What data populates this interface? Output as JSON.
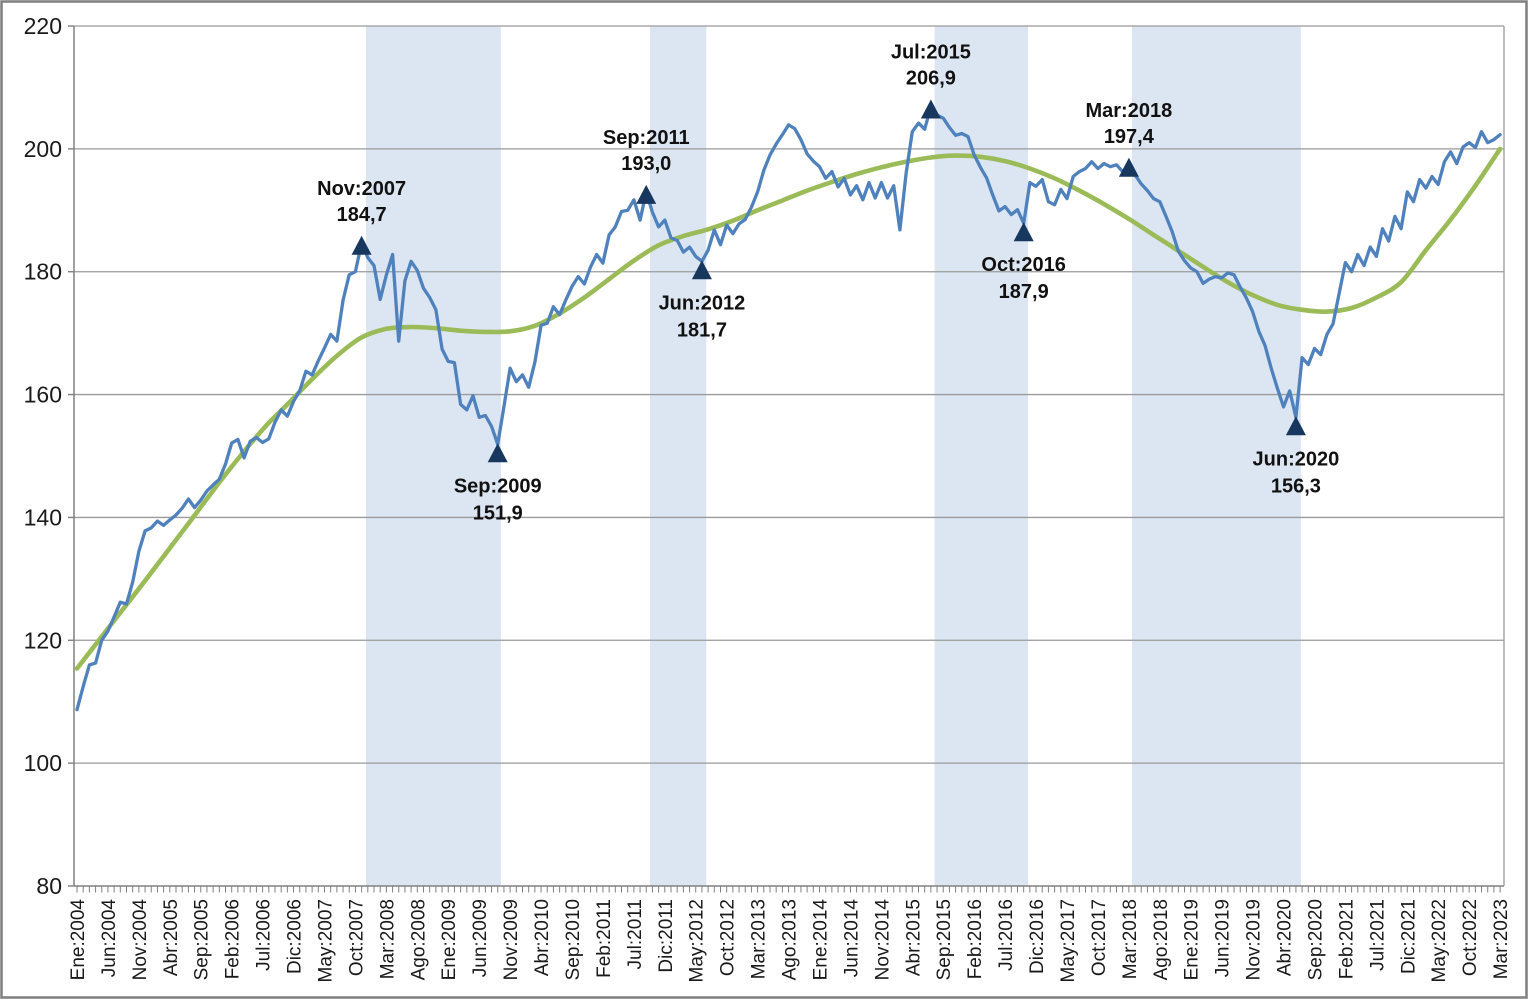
{
  "chart_data": {
    "type": "line",
    "title": "",
    "x_axis": {
      "tick_step_months": 5,
      "tick_labels": [
        "Ene:2004",
        "Jun:2004",
        "Nov:2004",
        "Abr:2005",
        "Sep:2005",
        "Feb:2006",
        "Jul:2006",
        "Dic:2006",
        "May:2007",
        "Oct:2007",
        "Mar:2008",
        "Ago:2008",
        "Ene:2009",
        "Jun:2009",
        "Nov:2009",
        "Abr:2010",
        "Sep:2010",
        "Feb:2011",
        "Jul:2011",
        "Dic:2011",
        "May:2012",
        "Oct:2012",
        "Mar:2013",
        "Ago:2013",
        "Ene:2014",
        "Jun:2014",
        "Nov:2014",
        "Abr:2015",
        "Sep:2015",
        "Feb:2016",
        "Jul:2016",
        "Dic:2016",
        "May:2017",
        "Oct:2017",
        "Mar:2018",
        "Ago:2018",
        "Ene:2019",
        "Jun:2019",
        "Nov:2019",
        "Abr:2020",
        "Sep:2020",
        "Feb:2021",
        "Jul:2021",
        "Dic:2021",
        "May:2022",
        "Oct:2022",
        "Mar:2023"
      ]
    },
    "y_axis": {
      "min": 80,
      "max": 220,
      "step": 20,
      "tick_labels": [
        "220",
        "200",
        "180",
        "160",
        "140",
        "120",
        "100",
        "80"
      ]
    },
    "series": [
      {
        "name": "monthly-series",
        "color": "#4F81BD",
        "start": "Ene:2004",
        "frequency": "monthly",
        "values": [
          108.7,
          112.5,
          116.0,
          116.3,
          120.0,
          121.5,
          123.8,
          126.2,
          125.9,
          129.5,
          134.5,
          137.8,
          138.3,
          139.4,
          138.7,
          139.6,
          140.4,
          141.5,
          143.0,
          141.6,
          142.8,
          144.3,
          145.3,
          146.2,
          148.7,
          152.1,
          152.7,
          149.7,
          152.4,
          153.0,
          152.2,
          152.8,
          155.5,
          157.5,
          156.5,
          158.9,
          160.6,
          163.8,
          163.2,
          165.5,
          167.6,
          169.8,
          168.7,
          175.4,
          179.5,
          180.0,
          184.7,
          182.3,
          181.0,
          175.5,
          179.5,
          182.8,
          168.7,
          178.5,
          181.7,
          180.2,
          177.3,
          175.8,
          173.8,
          167.4,
          165.4,
          165.2,
          158.4,
          157.5,
          159.8,
          156.3,
          156.6,
          154.8,
          151.9,
          158.0,
          164.3,
          162.1,
          163.2,
          161.2,
          165.3,
          171.3,
          171.6,
          174.3,
          173.0,
          175.4,
          177.6,
          179.2,
          178.0,
          180.8,
          182.8,
          181.4,
          186.0,
          187.3,
          189.8,
          190.0,
          191.7,
          188.4,
          193.0,
          189.7,
          187.3,
          188.4,
          185.5,
          185.1,
          183.2,
          184.0,
          182.5,
          181.7,
          183.5,
          186.8,
          184.4,
          187.6,
          186.2,
          187.8,
          188.5,
          190.5,
          193.0,
          196.5,
          199.0,
          200.8,
          202.3,
          203.9,
          203.3,
          201.5,
          199.2,
          198.0,
          197.1,
          195.2,
          196.3,
          193.8,
          195.2,
          192.5,
          194.0,
          191.7,
          194.5,
          192.0,
          194.5,
          192.0,
          194.0,
          186.8,
          196.0,
          202.8,
          204.2,
          203.2,
          206.9,
          205.5,
          205.0,
          203.5,
          202.2,
          202.5,
          202.0,
          199.0,
          197.0,
          195.3,
          192.5,
          189.9,
          190.6,
          189.3,
          190.1,
          187.9,
          194.5,
          193.9,
          195.0,
          191.4,
          190.9,
          193.4,
          191.9,
          195.5,
          196.3,
          196.8,
          197.9,
          196.8,
          197.6,
          197.1,
          197.4,
          196.3,
          197.4,
          195.8,
          194.3,
          193.2,
          191.9,
          191.4,
          189.0,
          186.5,
          183.3,
          181.8,
          180.6,
          180.0,
          178.1,
          178.8,
          179.2,
          179.0,
          179.8,
          179.5,
          177.5,
          175.7,
          173.5,
          170.3,
          168.0,
          164.3,
          161.0,
          158.0,
          160.6,
          156.3,
          166.0,
          164.9,
          167.5,
          166.5,
          169.8,
          171.5,
          176.5,
          181.5,
          180.0,
          182.8,
          181.0,
          184.0,
          182.5,
          187.0,
          185.0,
          189.0,
          187.0,
          193.0,
          191.4,
          195.0,
          193.6,
          195.5,
          194.2,
          197.9,
          199.5,
          197.6,
          200.3,
          201.0,
          200.2,
          202.8,
          201.0,
          201.5,
          202.3
        ]
      },
      {
        "name": "trend-series",
        "color": "#9BBB59",
        "knots": [
          [
            0,
            115.4
          ],
          [
            6,
            123.2
          ],
          [
            12,
            131.0
          ],
          [
            18,
            139.0
          ],
          [
            24,
            147.0
          ],
          [
            30,
            154.3
          ],
          [
            34,
            158.4
          ],
          [
            38,
            162.5
          ],
          [
            42,
            166.3
          ],
          [
            46,
            169.3
          ],
          [
            50,
            170.7
          ],
          [
            54,
            171.0
          ],
          [
            58,
            170.8
          ],
          [
            62,
            170.4
          ],
          [
            66,
            170.2
          ],
          [
            70,
            170.3
          ],
          [
            74,
            171.2
          ],
          [
            78,
            173.2
          ],
          [
            82,
            175.8
          ],
          [
            86,
            178.8
          ],
          [
            90,
            181.8
          ],
          [
            94,
            184.3
          ],
          [
            98,
            185.8
          ],
          [
            102,
            186.9
          ],
          [
            106,
            188.3
          ],
          [
            110,
            190.0
          ],
          [
            114,
            191.6
          ],
          [
            118,
            193.2
          ],
          [
            122,
            194.6
          ],
          [
            126,
            195.9
          ],
          [
            130,
            197.0
          ],
          [
            134,
            197.9
          ],
          [
            138,
            198.6
          ],
          [
            142,
            198.9
          ],
          [
            146,
            198.7
          ],
          [
            150,
            198.0
          ],
          [
            154,
            196.8
          ],
          [
            158,
            195.2
          ],
          [
            162,
            193.2
          ],
          [
            166,
            191.0
          ],
          [
            170,
            188.6
          ],
          [
            174,
            186.0
          ],
          [
            178,
            183.4
          ],
          [
            182,
            180.8
          ],
          [
            186,
            178.3
          ],
          [
            190,
            176.2
          ],
          [
            194,
            174.6
          ],
          [
            198,
            173.8
          ],
          [
            202,
            173.5
          ],
          [
            206,
            174.1
          ],
          [
            210,
            175.8
          ],
          [
            214,
            178.3
          ],
          [
            218,
            183.5
          ],
          [
            222,
            188.5
          ],
          [
            226,
            194.0
          ],
          [
            230,
            200.0
          ]
        ]
      }
    ],
    "recession_bands": [
      {
        "start_m": 46.7,
        "end_m": 68.5
      },
      {
        "start_m": 92.6,
        "end_m": 101.7
      },
      {
        "start_m": 138.6,
        "end_m": 153.7
      },
      {
        "start_m": 170.5,
        "end_m": 197.8
      }
    ],
    "annotations": [
      {
        "date": "Nov:2007",
        "value": "184,7",
        "m": 46,
        "v": 184.7,
        "side": "above"
      },
      {
        "date": "Sep:2009",
        "value": "151,9",
        "m": 68,
        "v": 151.9,
        "side": "below"
      },
      {
        "date": "Sep:2011",
        "value": "193,0",
        "m": 92,
        "v": 193.0,
        "side": "above"
      },
      {
        "date": "Jun:2012",
        "value": "181,7",
        "m": 101,
        "v": 181.7,
        "side": "below"
      },
      {
        "date": "Jul:2015",
        "value": "206,9",
        "m": 138,
        "v": 206.9,
        "side": "above"
      },
      {
        "date": "Oct:2016",
        "value": "187,9",
        "m": 153,
        "v": 187.9,
        "side": "below"
      },
      {
        "date": "Mar:2018",
        "value": "197,4",
        "m": 170,
        "v": 197.4,
        "side": "above"
      },
      {
        "date": "Jun:2020",
        "value": "156,3",
        "m": 197,
        "v": 156.3,
        "side": "below"
      }
    ],
    "colors": {
      "monthly_line": "#4F81BD",
      "trend_line": "#9BBB59",
      "band_fill": "#DCE6F2",
      "gridline": "#9A9A9A",
      "axis": "#808080",
      "marker": "#17375E",
      "frame": "#7F7F7F",
      "text": "#1A1A1A"
    },
    "legend": {
      "visible": false
    }
  }
}
